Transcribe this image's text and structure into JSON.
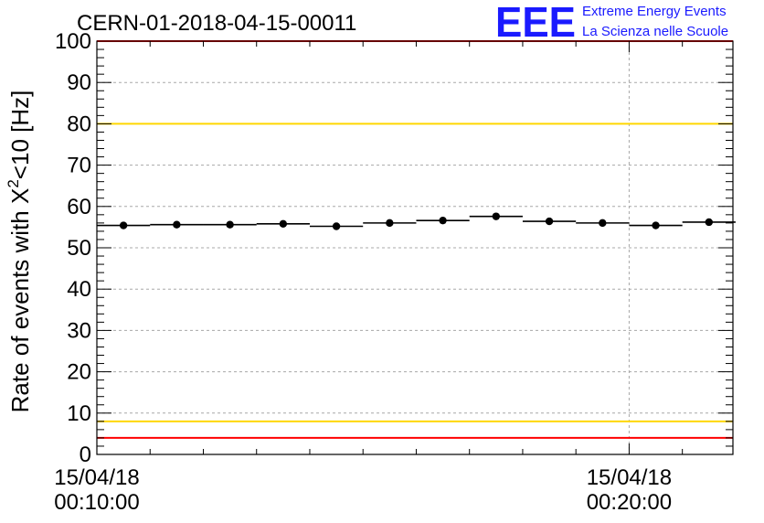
{
  "title": "CERN-01-2018-04-15-00011",
  "logo": {
    "mark": "EEE",
    "line1": "Extreme Energy Events",
    "line2": "La Scienza nelle Scuole",
    "color": "#1a1aff"
  },
  "chart_data": {
    "type": "scatter",
    "title": "CERN-01-2018-04-15-00011",
    "ylabel": "Rate of events with X²<10 [Hz]",
    "ylabel_parts": {
      "pre": "Rate of events with X",
      "sup": "2",
      "post": "<10 [Hz]"
    },
    "xlabel": "",
    "x_axis": "time",
    "ylim": [
      0,
      100
    ],
    "y_ticks": [
      0,
      10,
      20,
      30,
      40,
      50,
      60,
      70,
      80,
      90,
      100
    ],
    "x_tick_labels": [
      {
        "date": "15/04/18",
        "time": "00:10:00",
        "minute": 10
      },
      {
        "date": "15/04/18",
        "time": "00:20:00",
        "minute": 20
      }
    ],
    "xlim_minutes": [
      10,
      21.95
    ],
    "grid": true,
    "bin_width_minutes": 1,
    "series": [
      {
        "x_minutes": [
          10.5,
          11.5,
          12.5,
          13.5,
          14.5,
          15.5,
          16.5,
          17.5,
          18.5,
          19.5,
          20.5,
          21.5
        ],
        "values": [
          55.4,
          55.6,
          55.6,
          55.8,
          55.2,
          56.0,
          56.6,
          57.6,
          56.4,
          56.0,
          55.4,
          56.2
        ]
      }
    ],
    "reference_lines": [
      {
        "value": 100,
        "color": "#ff0000"
      },
      {
        "value": 80,
        "color": "#ffd700"
      },
      {
        "value": 8,
        "color": "#ffd700"
      },
      {
        "value": 4,
        "color": "#ff0000"
      }
    ]
  }
}
